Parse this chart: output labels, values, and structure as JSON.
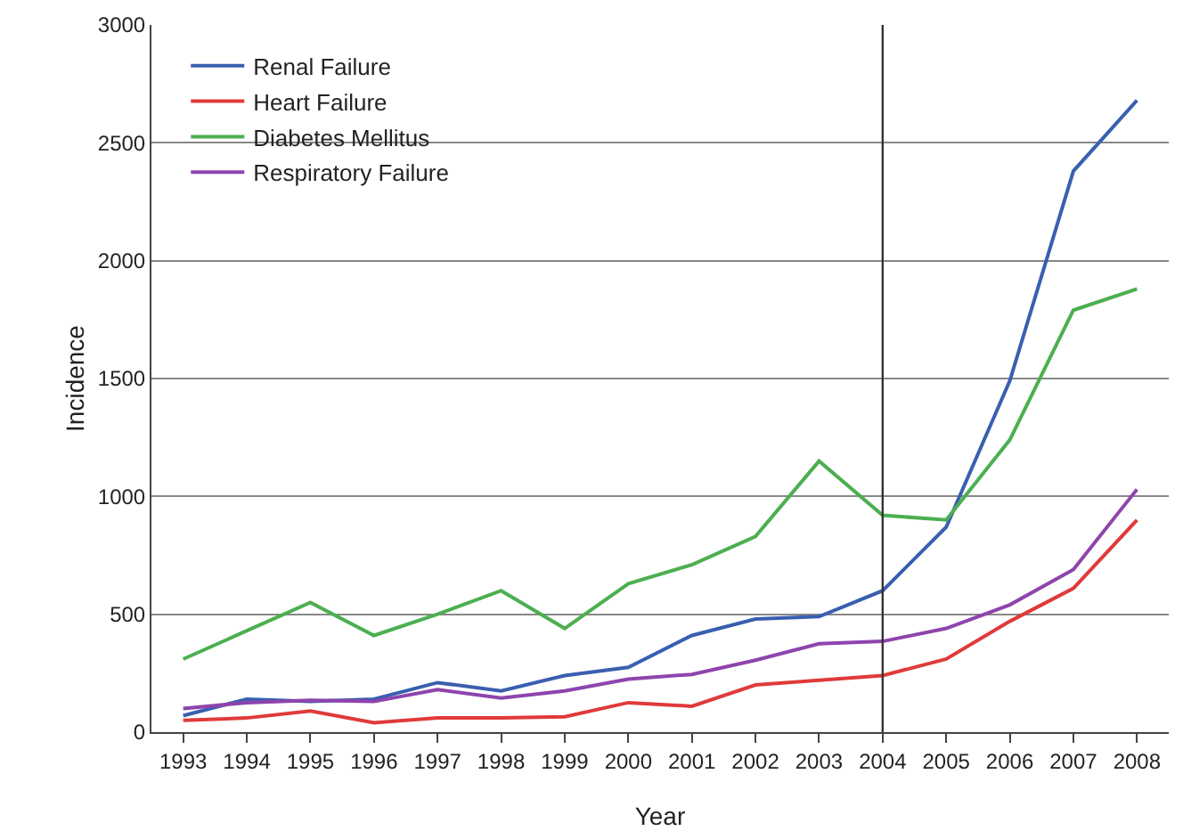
{
  "chart_data": {
    "type": "line",
    "xlabel": "Year",
    "ylabel": "Incidence",
    "x": [
      1993,
      1994,
      1995,
      1996,
      1997,
      1998,
      1999,
      2000,
      2001,
      2002,
      2003,
      2004,
      2005,
      2006,
      2007,
      2008
    ],
    "xlim": [
      1992.5,
      2008.5
    ],
    "xticks": [
      1993,
      1994,
      1995,
      1996,
      1997,
      1998,
      1999,
      2000,
      2001,
      2002,
      2003,
      2004,
      2005,
      2006,
      2007,
      2008
    ],
    "ylim": [
      0,
      3000
    ],
    "yticks": [
      0,
      500,
      1000,
      1500,
      2000,
      2500,
      3000
    ],
    "series": [
      {
        "name": "Renal Failure",
        "color": "#3a5fb0",
        "values": [
          70,
          140,
          130,
          140,
          210,
          175,
          240,
          275,
          410,
          480,
          490,
          600,
          870,
          1490,
          2380,
          2680
        ]
      },
      {
        "name": "Heart Failure",
        "color": "#e03a3a",
        "values": [
          50,
          60,
          90,
          40,
          60,
          60,
          65,
          125,
          110,
          200,
          220,
          240,
          310,
          470,
          610,
          900
        ]
      },
      {
        "name": "Diabetes Mellitus",
        "color": "#4caf50",
        "values": [
          310,
          430,
          550,
          410,
          500,
          600,
          440,
          630,
          710,
          830,
          1150,
          920,
          900,
          1240,
          1790,
          1880
        ]
      },
      {
        "name": "Respiratory Failure",
        "color": "#8e44ad",
        "values": [
          100,
          125,
          135,
          130,
          180,
          145,
          175,
          225,
          245,
          305,
          375,
          385,
          440,
          540,
          690,
          1030
        ]
      }
    ],
    "ref_lines": [
      {
        "axis": "x",
        "value": 2004,
        "color": "#333333"
      }
    ],
    "grid": "y",
    "legend": "top left",
    "marker": "none",
    "line_style": "solid"
  }
}
